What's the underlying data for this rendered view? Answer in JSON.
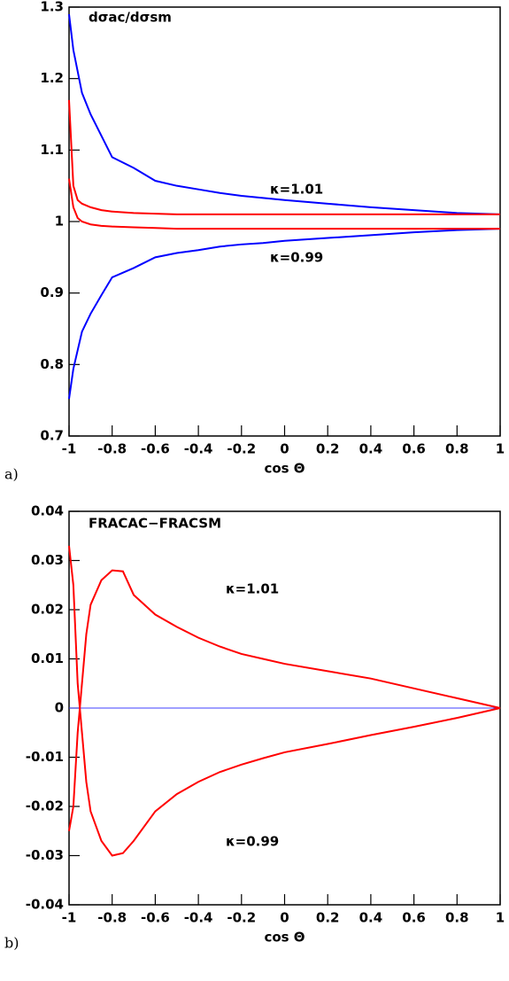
{
  "chart_data": [
    {
      "type": "line",
      "title": "dσac/dσsm",
      "panel_label": "a)",
      "x_label": "cos Θ",
      "annotations": [
        "κ=1.01",
        "κ=0.99"
      ],
      "x": [
        -1,
        -0.98,
        -0.96,
        -0.94,
        -0.9,
        -0.85,
        -0.8,
        -0.7,
        -0.6,
        -0.5,
        -0.4,
        -0.3,
        -0.2,
        -0.1,
        0,
        0.2,
        0.4,
        0.6,
        0.8,
        1
      ],
      "series": [
        {
          "color": "#0000ff",
          "values": [
            1.29,
            1.24,
            1.21,
            1.18,
            1.15,
            1.12,
            1.09,
            1.075,
            1.057,
            1.05,
            1.045,
            1.04,
            1.036,
            1.033,
            1.03,
            1.025,
            1.02,
            1.016,
            1.012,
            1.01
          ]
        },
        {
          "color": "#0000ff",
          "values": [
            0.752,
            0.794,
            0.82,
            0.846,
            0.871,
            0.897,
            0.922,
            0.935,
            0.95,
            0.956,
            0.96,
            0.965,
            0.968,
            0.97,
            0.973,
            0.977,
            0.981,
            0.985,
            0.988,
            0.99
          ]
        },
        {
          "color": "#ff0000",
          "values": [
            1.17,
            1.05,
            1.03,
            1.025,
            1.02,
            1.016,
            1.014,
            1.012,
            1.011,
            1.01,
            1.01,
            1.01,
            1.01,
            1.01,
            1.01,
            1.01,
            1.01,
            1.01,
            1.01,
            1.01
          ]
        },
        {
          "color": "#ff0000",
          "values": [
            1.06,
            1.02,
            1.005,
            1.0,
            0.996,
            0.994,
            0.993,
            0.992,
            0.991,
            0.99,
            0.99,
            0.99,
            0.99,
            0.99,
            0.99,
            0.99,
            0.99,
            0.99,
            0.99,
            0.99
          ]
        }
      ],
      "xlim": [
        -1,
        1
      ],
      "xticks": [
        -1,
        -0.8,
        -0.6,
        -0.4,
        -0.2,
        0,
        0.2,
        0.4,
        0.6,
        0.8,
        1
      ],
      "ylim": [
        0.7,
        1.3
      ],
      "yticks": [
        0.7,
        0.8,
        0.9,
        1,
        1.1,
        1.2,
        1.3
      ]
    },
    {
      "type": "line",
      "title": "FRACAC−FRACSM",
      "panel_label": "b)",
      "x_label": "cos Θ",
      "annotations": [
        "κ=1.01",
        "κ=0.99"
      ],
      "hline": {
        "value": 0,
        "color": "#4040ff"
      },
      "x": [
        -1,
        -0.98,
        -0.96,
        -0.94,
        -0.92,
        -0.9,
        -0.85,
        -0.8,
        -0.75,
        -0.7,
        -0.6,
        -0.5,
        -0.4,
        -0.3,
        -0.2,
        -0.1,
        0,
        0.2,
        0.4,
        0.6,
        0.8,
        1
      ],
      "series": [
        {
          "color": "#ff0000",
          "values": [
            -0.025,
            -0.02,
            -0.005,
            0.005,
            0.015,
            0.021,
            0.026,
            0.028,
            0.0278,
            0.023,
            0.019,
            0.0165,
            0.0143,
            0.0125,
            0.011,
            0.01,
            0.009,
            0.0075,
            0.006,
            0.004,
            0.002,
            0
          ]
        },
        {
          "color": "#ff0000",
          "values": [
            0.033,
            0.025,
            0.005,
            -0.005,
            -0.015,
            -0.021,
            -0.027,
            -0.03,
            -0.0295,
            -0.027,
            -0.021,
            -0.0175,
            -0.015,
            -0.013,
            -0.0115,
            -0.0102,
            -0.009,
            -0.0073,
            -0.0055,
            -0.0038,
            -0.002,
            0
          ]
        }
      ],
      "xlim": [
        -1,
        1
      ],
      "xticks": [
        -1,
        -0.8,
        -0.6,
        -0.4,
        -0.2,
        0,
        0.2,
        0.4,
        0.6,
        0.8,
        1
      ],
      "ylim": [
        -0.04,
        0.04
      ],
      "yticks": [
        -0.04,
        -0.03,
        -0.02,
        -0.01,
        0,
        0.01,
        0.02,
        0.03,
        0.04
      ]
    }
  ]
}
